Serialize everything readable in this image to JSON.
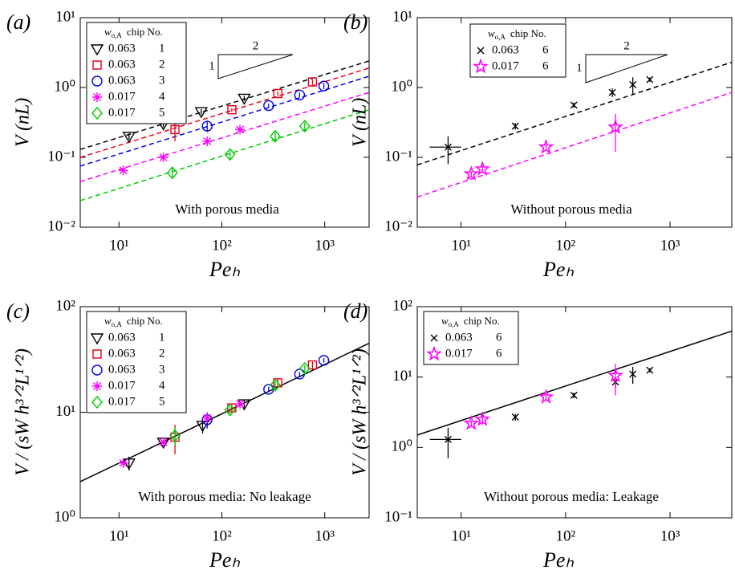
{
  "chart_data": [
    {
      "type": "scatter",
      "panel_label": "(a)",
      "xlabel": "Peₕ",
      "ylabel": "V (nL)",
      "annotation": "With porous media",
      "legend_title": {
        "symbol": "w",
        "sub": "o,A",
        "text": "chip No."
      },
      "slope_triangle": {
        "rise": "1",
        "run": "2"
      },
      "log_x": true,
      "log_y": true,
      "xlim": [
        4.2,
        2700
      ],
      "ylim": [
        0.01,
        10
      ],
      "xticks": [
        {
          "value": 10,
          "label": "10¹"
        },
        {
          "value": 100,
          "label": "10²"
        },
        {
          "value": 1000,
          "label": "10³"
        }
      ],
      "yticks": [
        {
          "value": 0.01,
          "label": "10⁻²"
        },
        {
          "value": 0.1,
          "label": "10⁻¹"
        },
        {
          "value": 1,
          "label": "10⁰"
        },
        {
          "value": 10,
          "label": "10¹"
        }
      ],
      "series": [
        {
          "name": "0.063",
          "chip": "1",
          "marker": "triangle-down",
          "color": "#000000",
          "x": [
            12.5,
            27,
            63,
            165
          ],
          "values": [
            0.2,
            0.3,
            0.45,
            0.7
          ],
          "yerr": [
            0.02,
            0.03,
            0.04,
            0.06
          ]
        },
        {
          "name": "0.063",
          "chip": "2",
          "marker": "square",
          "color": "#e8001c",
          "x": [
            35,
            125,
            350,
            760
          ],
          "values": [
            0.25,
            0.48,
            0.82,
            1.2
          ],
          "yerr": [
            0.08,
            0.03,
            0.06,
            0.1
          ]
        },
        {
          "name": "0.063",
          "chip": "3",
          "marker": "circle",
          "color": "#0000e6",
          "x": [
            72,
            285,
            570,
            980
          ],
          "values": [
            0.28,
            0.55,
            0.78,
            1.05
          ],
          "yerr": [
            0.05,
            0.04,
            0.06,
            0.1
          ]
        },
        {
          "name": "0.017",
          "chip": "4",
          "marker": "asterisk",
          "color": "#ff00ff",
          "x": [
            11,
            27,
            72,
            150
          ],
          "values": [
            0.065,
            0.1,
            0.17,
            0.25
          ],
          "yerr": [
            0.005,
            0.008,
            0.015,
            0.02
          ]
        },
        {
          "name": "0.017",
          "chip": "5",
          "marker": "diamond",
          "color": "#00cc00",
          "x": [
            33,
            120,
            330,
            640
          ],
          "values": [
            0.06,
            0.11,
            0.2,
            0.28
          ],
          "yerr": [
            0.01,
            0.015,
            0.03,
            0.04
          ]
        }
      ],
      "fits": [
        {
          "color": "#000000",
          "style": "dashed",
          "x": [
            4.2,
            2700
          ],
          "y": [
            0.13,
            2.4
          ]
        },
        {
          "color": "#e8001c",
          "style": "dashed",
          "x": [
            4.2,
            2700
          ],
          "y": [
            0.1,
            1.9
          ]
        },
        {
          "color": "#0000e6",
          "style": "dashed",
          "x": [
            4.2,
            2700
          ],
          "y": [
            0.075,
            1.45
          ]
        },
        {
          "color": "#ff00ff",
          "style": "dashed",
          "x": [
            4.2,
            2700
          ],
          "y": [
            0.045,
            0.85
          ]
        },
        {
          "color": "#00cc00",
          "style": "dashed",
          "x": [
            4.2,
            2700
          ],
          "y": [
            0.024,
            0.48
          ]
        }
      ]
    },
    {
      "type": "scatter",
      "panel_label": "(b)",
      "xlabel": "Peₕ",
      "ylabel": "V (nL)",
      "annotation": "Without porous media",
      "legend_title": {
        "symbol": "w",
        "sub": "o,A",
        "text": "chip No."
      },
      "slope_triangle": {
        "rise": "1",
        "run": "2"
      },
      "log_x": true,
      "log_y": true,
      "xlim": [
        3.8,
        3900
      ],
      "ylim": [
        0.01,
        10
      ],
      "xticks": [
        {
          "value": 10,
          "label": "10¹"
        },
        {
          "value": 100,
          "label": "10²"
        },
        {
          "value": 1000,
          "label": "10³"
        }
      ],
      "yticks": [
        {
          "value": 0.01,
          "label": "10⁻²"
        },
        {
          "value": 0.1,
          "label": "10⁻¹"
        },
        {
          "value": 1,
          "label": "10⁰"
        },
        {
          "value": 10,
          "label": "10¹"
        }
      ],
      "series": [
        {
          "name": "0.063",
          "chip": "6",
          "marker": "x",
          "color": "#000000",
          "x": [
            7.5,
            33,
            120,
            280,
            440,
            640
          ],
          "values": [
            0.14,
            0.28,
            0.56,
            0.85,
            1.1,
            1.3
          ],
          "yerr": [
            0.06,
            0.03,
            0.05,
            0.12,
            0.3,
            0.1
          ],
          "xerr": [
            2.5,
            0,
            0,
            0,
            0,
            0
          ]
        },
        {
          "name": "0.017",
          "chip": "6",
          "marker": "star",
          "color": "#ff00ff",
          "x": [
            12.5,
            16,
            65,
            300
          ],
          "values": [
            0.058,
            0.068,
            0.14,
            0.27
          ],
          "yerr": [
            0.005,
            0.008,
            0.012,
            0.15
          ]
        }
      ],
      "fits": [
        {
          "color": "#000000",
          "style": "dashed",
          "x": [
            3.8,
            3900
          ],
          "y": [
            0.078,
            2.3
          ]
        },
        {
          "color": "#ff00ff",
          "style": "dashed",
          "x": [
            3.8,
            3900
          ],
          "y": [
            0.027,
            0.85
          ]
        }
      ]
    },
    {
      "type": "scatter",
      "panel_label": "(c)",
      "xlabel": "Peₕ",
      "ylabel": "V / (sW h³ᐟ²L¹ᐟ²)",
      "annotation": "With porous media: No leakage",
      "legend_title": {
        "symbol": "w",
        "sub": "o,A",
        "text": "chip No."
      },
      "log_x": true,
      "log_y": true,
      "xlim": [
        4.2,
        2700
      ],
      "ylim": [
        1,
        100
      ],
      "xticks": [
        {
          "value": 10,
          "label": "10¹"
        },
        {
          "value": 100,
          "label": "10²"
        },
        {
          "value": 1000,
          "label": "10³"
        }
      ],
      "yticks": [
        {
          "value": 1,
          "label": "10⁰"
        },
        {
          "value": 10,
          "label": "10¹"
        },
        {
          "value": 100,
          "label": "10²"
        }
      ],
      "series": [
        {
          "name": "0.063",
          "chip": "1",
          "marker": "triangle-down",
          "color": "#000000",
          "x": [
            12.5,
            27,
            65,
            165
          ],
          "values": [
            3.3,
            5.2,
            7.5,
            12
          ],
          "yerr": [
            0.5,
            0.5,
            1.2,
            1
          ]
        },
        {
          "name": "0.063",
          "chip": "2",
          "marker": "square",
          "color": "#e8001c",
          "x": [
            35,
            125,
            350,
            760
          ],
          "values": [
            5.8,
            11,
            19,
            28
          ],
          "yerr": [
            1.8,
            0.8,
            1.5,
            2
          ]
        },
        {
          "name": "0.063",
          "chip": "3",
          "marker": "circle",
          "color": "#0000e6",
          "x": [
            72,
            285,
            570,
            980
          ],
          "values": [
            8.5,
            16.5,
            23,
            31
          ],
          "yerr": [
            1.5,
            1,
            1,
            1.5
          ]
        },
        {
          "name": "0.017",
          "chip": "4",
          "marker": "asterisk",
          "color": "#ff00ff",
          "x": [
            11,
            27,
            72,
            150
          ],
          "values": [
            3.3,
            5.2,
            8.8,
            12
          ],
          "yerr": [
            0.3,
            0.4,
            0.8,
            1
          ]
        },
        {
          "name": "0.017",
          "chip": "5",
          "marker": "diamond",
          "color": "#00cc00",
          "x": [
            35,
            120,
            330,
            640
          ],
          "values": [
            6,
            10.5,
            18,
            26
          ],
          "yerr": [
            1.2,
            0.8,
            1.5,
            2
          ]
        }
      ],
      "fits": [
        {
          "color": "#000000",
          "style": "solid",
          "x": [
            4.2,
            2700
          ],
          "y": [
            2.2,
            45
          ]
        }
      ]
    },
    {
      "type": "scatter",
      "panel_label": "(d)",
      "xlabel": "Peₕ",
      "ylabel": "V / (sW h³ᐟ²L¹ᐟ²)",
      "annotation": "Without porous media: Leakage",
      "legend_title": {
        "symbol": "w",
        "sub": "o,A",
        "text": "chip No."
      },
      "log_x": true,
      "log_y": true,
      "xlim": [
        3.8,
        3900
      ],
      "ylim": [
        0.1,
        100
      ],
      "xticks": [
        {
          "value": 10,
          "label": "10¹"
        },
        {
          "value": 100,
          "label": "10²"
        },
        {
          "value": 1000,
          "label": "10³"
        }
      ],
      "yticks": [
        {
          "value": 0.1,
          "label": "10⁻¹"
        },
        {
          "value": 1,
          "label": "10⁰"
        },
        {
          "value": 10,
          "label": "10¹"
        },
        {
          "value": 100,
          "label": "10²"
        }
      ],
      "series": [
        {
          "name": "0.063",
          "chip": "6",
          "marker": "x",
          "color": "#000000",
          "x": [
            7.5,
            33,
            120,
            300,
            440,
            640
          ],
          "values": [
            1.3,
            2.7,
            5.5,
            8.5,
            11,
            12.5
          ],
          "yerr": [
            0.6,
            0.3,
            0.5,
            1.5,
            3,
            0.8
          ],
          "xerr": [
            2.5,
            0,
            0,
            0,
            0,
            0
          ]
        },
        {
          "name": "0.017",
          "chip": "6",
          "marker": "star",
          "color": "#ff00ff",
          "x": [
            12.5,
            16,
            65,
            300
          ],
          "values": [
            2.2,
            2.5,
            5.2,
            10.5
          ],
          "yerr": [
            0.2,
            0.4,
            0.5,
            5
          ]
        }
      ],
      "fits": [
        {
          "color": "#000000",
          "style": "solid",
          "x": [
            3.8,
            3900
          ],
          "y": [
            1.5,
            45
          ]
        }
      ]
    }
  ]
}
